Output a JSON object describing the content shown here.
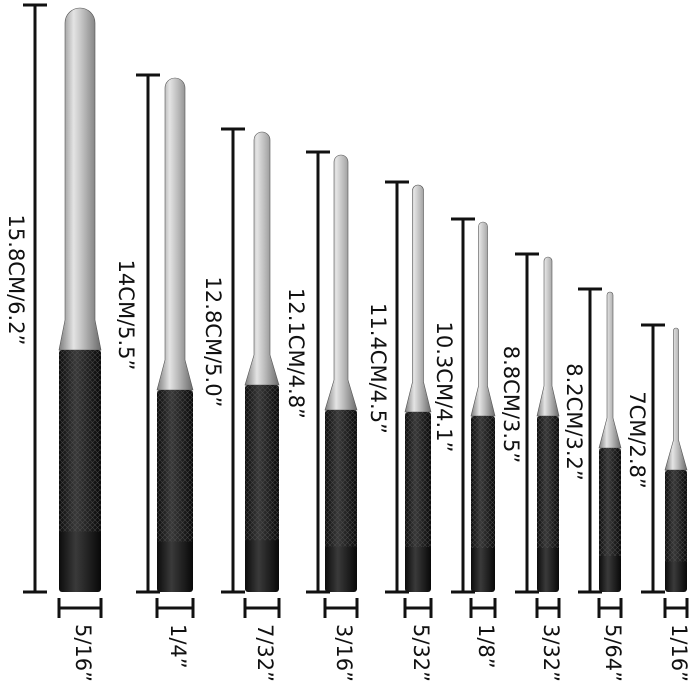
{
  "punches": [
    {
      "length": "15.8CM/6.2”",
      "diameter": "5/16”"
    },
    {
      "length": "14CM/5.5”",
      "diameter": "1/4”"
    },
    {
      "length": "12.8CM/5.0”",
      "diameter": "7/32”"
    },
    {
      "length": "12.1CM/4.8”",
      "diameter": "3/16”"
    },
    {
      "length": "11.4CM/4.5”",
      "diameter": "5/32”"
    },
    {
      "length": "10.3CM/4.1”",
      "diameter": "1/8”"
    },
    {
      "length": "8.8CM/3.5”",
      "diameter": "3/32”"
    },
    {
      "length": "8.2CM/3.2”",
      "diameter": "5/64”"
    },
    {
      "length": "7CM/2.8”",
      "diameter": "1/16”"
    }
  ]
}
